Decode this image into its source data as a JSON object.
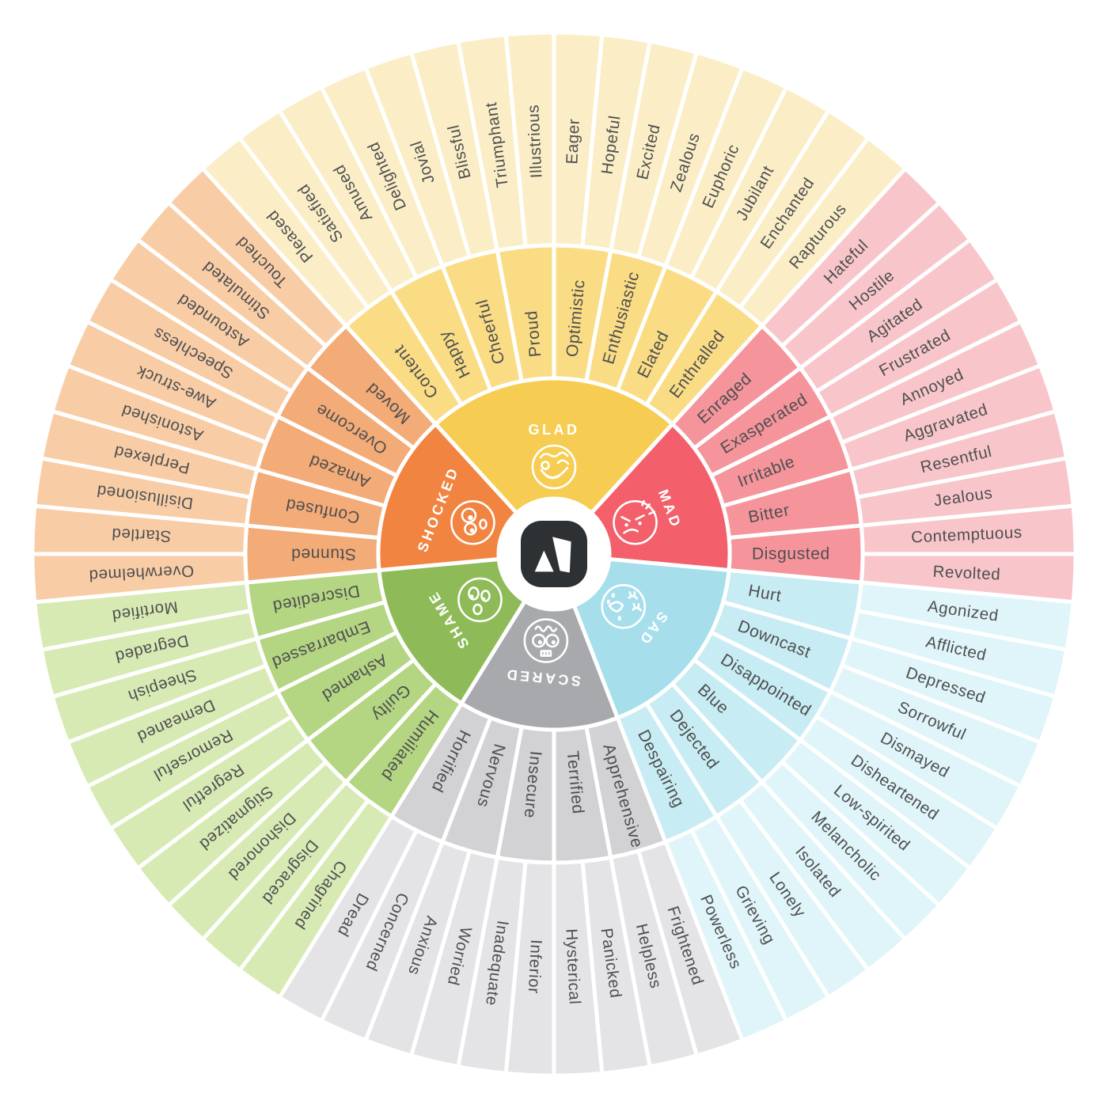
{
  "title": "emotion-wheel",
  "background": "#ffffff",
  "text_color": "#4e4f51",
  "core_label_color": "#ffffff",
  "logo": {
    "name": "a-mark-logo",
    "background": "#2e3134",
    "foreground": "#ffffff"
  },
  "wheel": {
    "emotions": [
      {
        "name": "GLAD",
        "icon": "glad-winking-face-icon",
        "colors": {
          "core": "#f6cd52",
          "secondary": "#fadc84",
          "tertiary": "#fbeec6"
        },
        "secondary": [
          "Content",
          "Happy",
          "Cheerful",
          "Proud",
          "Optimistic",
          "Enthusiastic",
          "Elated",
          "Enthralled"
        ],
        "tertiary": [
          "Pleased",
          "Satisfied",
          "Amused",
          "Delighted",
          "Jovial",
          "Blissful",
          "Triumphant",
          "Illustrious",
          "Eager",
          "Hopeful",
          "Excited",
          "Zealous",
          "Euphoric",
          "Jubilant",
          "Enchanted",
          "Rapturous"
        ]
      },
      {
        "name": "MAD",
        "icon": "mad-angry-face-icon",
        "colors": {
          "core": "#f3606b",
          "secondary": "#f5949b",
          "tertiary": "#f8c6ca"
        },
        "secondary": [
          "Enraged",
          "Exasperated",
          "Irritable",
          "Bitter",
          "Disgusted"
        ],
        "tertiary": [
          "Hateful",
          "Hostile",
          "Agitated",
          "Frustrated",
          "Annoyed",
          "Aggravated",
          "Resentful",
          "Jealous",
          "Contemptuous",
          "Revolted"
        ]
      },
      {
        "name": "SAD",
        "icon": "sad-crying-face-icon",
        "colors": {
          "core": "#a6dfeb",
          "secondary": "#c8ecf3",
          "tertiary": "#e0f5f9"
        },
        "secondary": [
          "Hurt",
          "Downcast",
          "Disappointed",
          "Blue",
          "Dejected",
          "Despairing"
        ],
        "tertiary": [
          "Agonized",
          "Afflicted",
          "Depressed",
          "Sorrowful",
          "Dismayed",
          "Disheartened",
          "Low-spirited",
          "Melancholic",
          "Isolated",
          "Lonely",
          "Grieving",
          "Powerless"
        ]
      },
      {
        "name": "SCARED",
        "icon": "scared-wide-eyes-face-icon",
        "colors": {
          "core": "#a7a9ac",
          "secondary": "#d2d2d4",
          "tertiary": "#e4e4e6"
        },
        "secondary": [
          "Apprehensive",
          "Terrified",
          "Insecure",
          "Nervous",
          "Horrified"
        ],
        "tertiary": [
          "Frightened",
          "Helpless",
          "Panicked",
          "Hysterical",
          "Inferior",
          "Inadequate",
          "Worried",
          "Anxious",
          "Concerned",
          "Dread"
        ]
      },
      {
        "name": "SHAME",
        "icon": "shame-averted-eyes-face-icon",
        "colors": {
          "core": "#8ebb58",
          "secondary": "#b4d581",
          "tertiary": "#d8eab3"
        },
        "secondary": [
          "Humiliated",
          "Guilty",
          "Ashamed",
          "Embarrassed",
          "Discredited"
        ],
        "tertiary": [
          "Chagrined",
          "Disgraced",
          "Dishonored",
          "Stigmatized",
          "Regretful",
          "Remorseful",
          "Demeaned",
          "Sheepish",
          "Degraded",
          "Mortified"
        ]
      },
      {
        "name": "SHOCKED",
        "icon": "shocked-staring-face-icon",
        "colors": {
          "core": "#f28441",
          "secondary": "#f3ab77",
          "tertiary": "#f8cda6"
        },
        "secondary": [
          "Stunned",
          "Confused",
          "Amazed",
          "Overcome",
          "Moved"
        ],
        "tertiary": [
          "Overwhelmed",
          "Startled",
          "Disillusioned",
          "Perplexed",
          "Astonished",
          "Awe-struck",
          "Speechless",
          "Astounded",
          "Stimulated",
          "Touched"
        ]
      }
    ]
  }
}
